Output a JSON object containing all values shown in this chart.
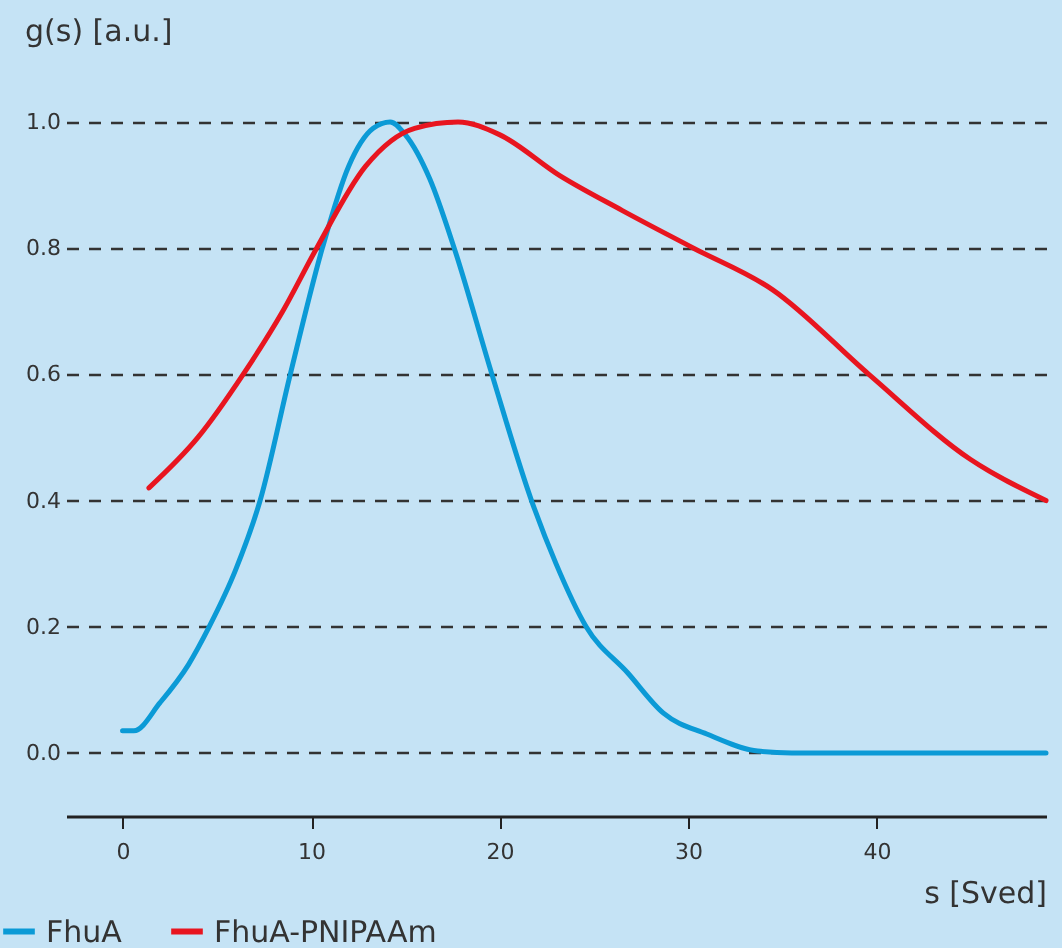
{
  "chart_data": {
    "type": "line",
    "xlabel": "s [Sved]",
    "ylabel": "g(s) [a.u.]",
    "xlim": [
      -3,
      49
    ],
    "ylim": [
      -0.1,
      1.0
    ],
    "xticks": [
      0,
      10,
      20,
      30,
      40
    ],
    "yticks": [
      {
        "value": 0,
        "label": "0.0"
      },
      0.2,
      0.4,
      0.6,
      0.8,
      {
        "value": 1,
        "label": "1.0"
      }
    ],
    "grid": "y",
    "legend": "bottom left",
    "line_style": "solid",
    "marker": "none",
    "series": [
      {
        "name": "FhuA",
        "color": "#0b9ad6",
        "x": [
          0,
          0.6,
          2,
          3.5,
          4.6,
          6,
          7.3,
          8.9,
          10.6,
          12,
          13.3,
          14.2,
          15,
          16.3,
          17.6,
          19.6,
          21.7,
          23,
          24.6,
          26.8,
          28.7,
          31,
          33.7,
          35.5,
          40,
          49
        ],
        "values": [
          0.035,
          0.035,
          0.08,
          0.14,
          0.2,
          0.29,
          0.4,
          0.6,
          0.8,
          0.93,
          0.99,
          1.0,
          0.98,
          0.91,
          0.8,
          0.6,
          0.4,
          0.3,
          0.2,
          0.127,
          0.063,
          0.03,
          0.003,
          0,
          0,
          0
        ]
      },
      {
        "name": "FhuA-PNIPAAm",
        "color": "#e8151f",
        "x": [
          1.4,
          4,
          6.4,
          8.5,
          10.3,
          12.9,
          15.5,
          17.8,
          20,
          23.2,
          26.5,
          30.3,
          34.5,
          39.6,
          45,
          49
        ],
        "values": [
          0.42,
          0.5,
          0.6,
          0.7,
          0.8,
          0.93,
          0.99,
          1.0,
          0.98,
          0.915,
          0.86,
          0.8,
          0.734,
          0.6,
          0.465,
          0.4
        ]
      }
    ]
  }
}
